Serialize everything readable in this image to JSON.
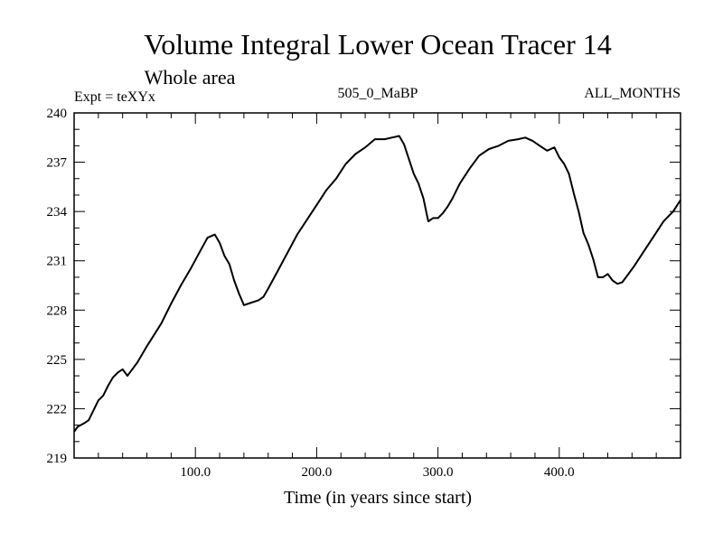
{
  "chart_data": {
    "type": "line",
    "title": "Volume Integral Lower Ocean Tracer 14",
    "subtitle": "Whole area",
    "experiment_label": "Expt = teXYx",
    "center_label": "505_0_MaBP",
    "right_label": "ALL_MONTHS",
    "xlabel": "Time (in years since start)",
    "ylabel": "",
    "xlim": [
      0,
      500
    ],
    "ylim": [
      219,
      240
    ],
    "x_ticks": [
      100,
      200,
      300,
      400
    ],
    "x_tick_labels": [
      "100.0",
      "200.0",
      "300.0",
      "400.0"
    ],
    "y_ticks": [
      219,
      222,
      225,
      228,
      231,
      234,
      237,
      240
    ],
    "y_tick_labels": [
      "219",
      "222",
      "225",
      "228",
      "231",
      "234",
      "237",
      "240"
    ],
    "grid": false,
    "series": [
      {
        "x": [
          0,
          3,
          8,
          12,
          16,
          20,
          24,
          28,
          32,
          36,
          40,
          44,
          48,
          52,
          56,
          60,
          66,
          72,
          80,
          88,
          96,
          104,
          110,
          116,
          120,
          124,
          128,
          132,
          136,
          140,
          144,
          148,
          152,
          156,
          160,
          168,
          176,
          184,
          192,
          200,
          208,
          216,
          224,
          232,
          240,
          248,
          256,
          262,
          268,
          272,
          276,
          280,
          284,
          288,
          292,
          296,
          300,
          304,
          308,
          312,
          318,
          326,
          334,
          342,
          350,
          358,
          366,
          372,
          378,
          384,
          390,
          396,
          400,
          404,
          408,
          412,
          416,
          420,
          424,
          428,
          432,
          436,
          440,
          444,
          448,
          452,
          456,
          462,
          470,
          478,
          486,
          494,
          500
        ],
        "y": [
          220.6,
          220.9,
          221.1,
          221.3,
          221.9,
          222.5,
          222.8,
          223.4,
          223.9,
          224.2,
          224.4,
          224.0,
          224.4,
          224.8,
          225.3,
          225.8,
          226.5,
          227.2,
          228.4,
          229.5,
          230.5,
          231.6,
          232.4,
          232.6,
          232.1,
          231.3,
          230.8,
          229.8,
          229.0,
          228.3,
          228.4,
          228.5,
          228.6,
          228.8,
          229.3,
          230.4,
          231.5,
          232.6,
          233.5,
          234.4,
          235.3,
          236.0,
          236.9,
          237.5,
          237.9,
          238.4,
          238.4,
          238.5,
          238.6,
          238.1,
          237.2,
          236.3,
          235.7,
          234.8,
          233.4,
          233.6,
          233.6,
          233.9,
          234.3,
          234.8,
          235.7,
          236.6,
          237.4,
          237.8,
          238.0,
          238.3,
          238.4,
          238.5,
          238.3,
          238.0,
          237.7,
          237.9,
          237.3,
          236.9,
          236.3,
          235.1,
          234.0,
          232.7,
          232.0,
          231.1,
          230.0,
          230.0,
          230.2,
          229.8,
          229.6,
          229.7,
          230.1,
          230.7,
          231.6,
          232.5,
          233.4,
          234.0,
          234.7
        ]
      }
    ]
  }
}
